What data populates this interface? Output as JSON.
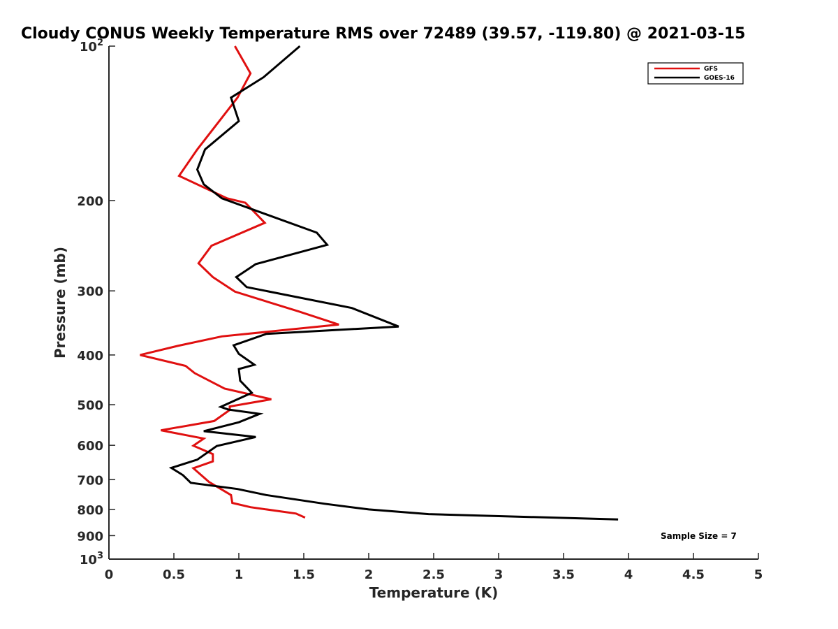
{
  "chart_data": {
    "type": "line",
    "title": "Cloudy CONUS Weekly Temperature RMS over 72489 (39.57, -119.80) @ 2021-03-15",
    "xlabel": "Temperature (K)",
    "ylabel": "Pressure (mb)",
    "xlim": [
      0,
      5
    ],
    "ylim": [
      1000,
      100
    ],
    "y_scale": "log",
    "y_reversed": true,
    "grid": false,
    "legend_position": "top-right",
    "x_ticks": [
      "0",
      "0.5",
      "1",
      "1.5",
      "2",
      "2.5",
      "3",
      "3.5",
      "4",
      "4.5",
      "5"
    ],
    "y_ticks": [
      {
        "value": 100,
        "base": "10",
        "exp": "2"
      },
      {
        "value": 200,
        "label": "200"
      },
      {
        "value": 300,
        "label": "300"
      },
      {
        "value": 400,
        "label": "400"
      },
      {
        "value": 500,
        "label": "500"
      },
      {
        "value": 600,
        "label": "600"
      },
      {
        "value": 700,
        "label": "700"
      },
      {
        "value": 800,
        "label": "800"
      },
      {
        "value": 900,
        "label": "900"
      },
      {
        "value": 1000,
        "base": "10",
        "exp": "3"
      }
    ],
    "annotation": "Sample Size = 7",
    "series": [
      {
        "name": "GFS",
        "color": "#e01010",
        "points": [
          [
            0.97,
            100
          ],
          [
            1.09,
            113
          ],
          [
            0.99,
            126
          ],
          [
            0.68,
            159
          ],
          [
            0.54,
            179
          ],
          [
            0.91,
            198
          ],
          [
            1.05,
            202
          ],
          [
            1.2,
            221
          ],
          [
            0.79,
            245
          ],
          [
            0.69,
            265
          ],
          [
            0.8,
            282
          ],
          [
            0.97,
            301
          ],
          [
            1.46,
            329
          ],
          [
            1.77,
            349
          ],
          [
            0.87,
            368
          ],
          [
            0.53,
            384
          ],
          [
            0.24,
            400
          ],
          [
            0.59,
            420
          ],
          [
            0.66,
            434
          ],
          [
            0.89,
            465
          ],
          [
            1.25,
            488
          ],
          [
            0.93,
            504
          ],
          [
            0.93,
            512
          ],
          [
            0.81,
            538
          ],
          [
            0.4,
            561
          ],
          [
            0.73,
            582
          ],
          [
            0.65,
            601
          ],
          [
            0.8,
            624
          ],
          [
            0.8,
            645
          ],
          [
            0.65,
            665
          ],
          [
            0.77,
            707
          ],
          [
            0.94,
            750
          ],
          [
            0.95,
            777
          ],
          [
            1.09,
            792
          ],
          [
            1.44,
            815
          ],
          [
            1.51,
            830
          ]
        ]
      },
      {
        "name": "GOES-16",
        "color": "#000000",
        "points": [
          [
            1.47,
            100
          ],
          [
            1.19,
            115
          ],
          [
            0.94,
            126
          ],
          [
            1.0,
            140
          ],
          [
            0.74,
            159
          ],
          [
            0.68,
            174
          ],
          [
            0.73,
            186
          ],
          [
            0.87,
            198
          ],
          [
            1.6,
            231
          ],
          [
            1.68,
            244
          ],
          [
            1.13,
            266
          ],
          [
            0.98,
            282
          ],
          [
            1.06,
            295
          ],
          [
            1.87,
            324
          ],
          [
            2.23,
            352
          ],
          [
            1.21,
            364
          ],
          [
            0.96,
            383
          ],
          [
            1.0,
            398
          ],
          [
            1.12,
            418
          ],
          [
            1.0,
            426
          ],
          [
            1.01,
            449
          ],
          [
            1.1,
            474
          ],
          [
            0.86,
            505
          ],
          [
            0.92,
            511
          ],
          [
            1.16,
            521
          ],
          [
            1.0,
            541
          ],
          [
            0.73,
            563
          ],
          [
            1.13,
            578
          ],
          [
            0.83,
            602
          ],
          [
            0.68,
            640
          ],
          [
            0.48,
            664
          ],
          [
            0.57,
            686
          ],
          [
            0.63,
            710
          ],
          [
            0.99,
            730
          ],
          [
            1.21,
            750
          ],
          [
            1.66,
            780
          ],
          [
            2.0,
            800
          ],
          [
            2.46,
            817
          ],
          [
            3.92,
            837
          ]
        ]
      }
    ]
  }
}
